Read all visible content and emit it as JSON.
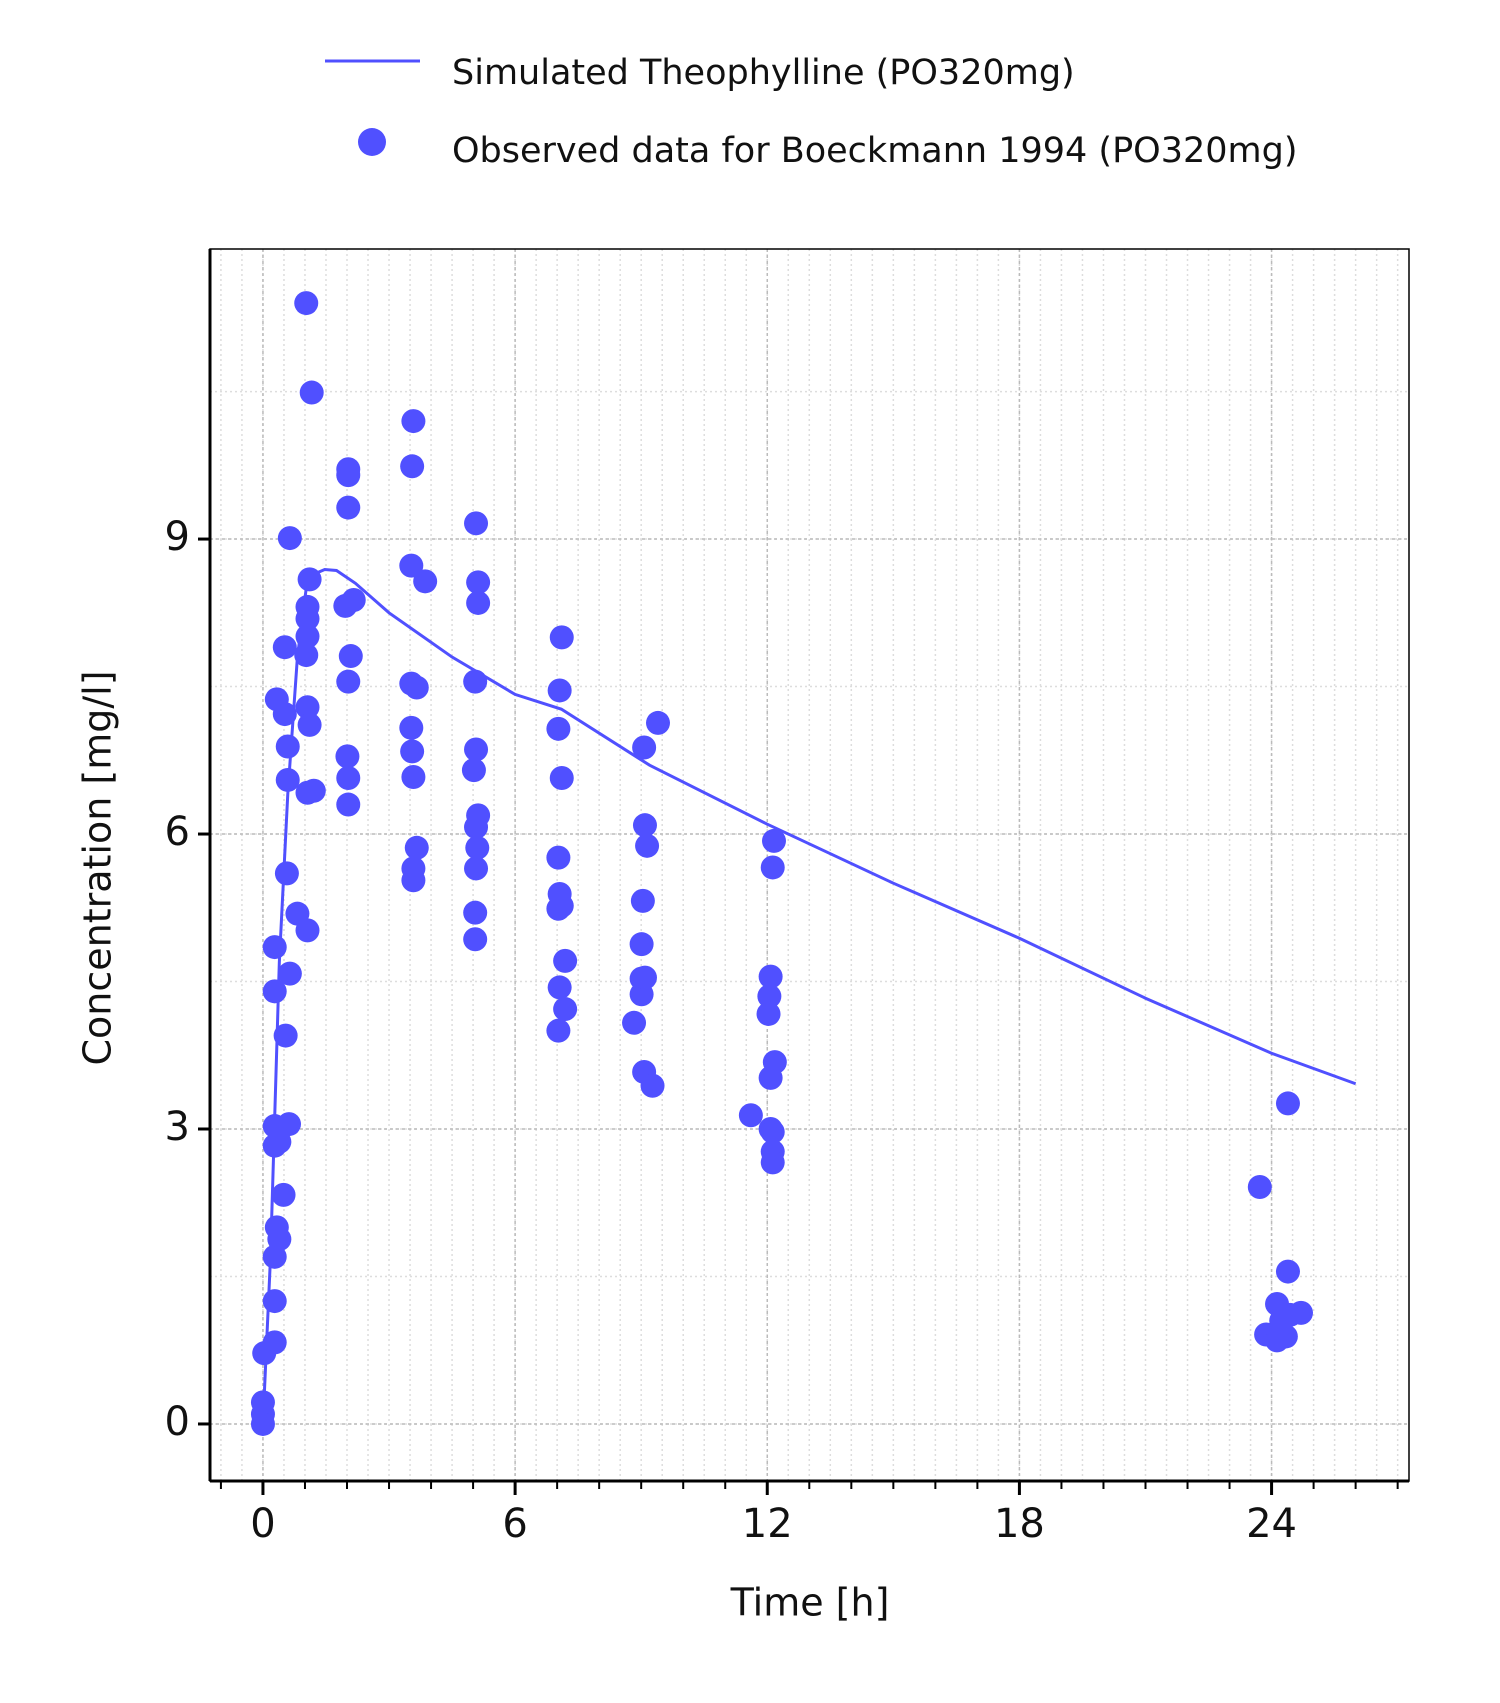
{
  "chart_data": {
    "type": "line",
    "xlabel": "Time [h]",
    "ylabel": "Concentration [mg/l]",
    "xlim": [
      -1.26,
      27.27
    ],
    "ylim": [
      -0.58,
      11.95
    ],
    "xticks": [
      0,
      6,
      12,
      18,
      24
    ],
    "yticks": [
      0,
      3,
      6,
      9
    ],
    "grid": true,
    "legend": "top",
    "series": [
      {
        "name": "Simulated Theophylline (PO320mg)",
        "type": "line",
        "color": "#5050ff",
        "x": [
          0,
          0.18,
          0.39,
          0.59,
          0.82,
          1.03,
          1.25,
          1.47,
          1.75,
          2.2,
          3,
          4.5,
          6,
          7.1,
          9.2,
          12,
          15,
          18,
          21,
          24,
          26
        ],
        "values": [
          0,
          1.7,
          4.7,
          6.4,
          7.8,
          8.5,
          8.65,
          8.69,
          8.68,
          8.55,
          8.25,
          7.8,
          7.42,
          7.27,
          6.7,
          6.1,
          5.5,
          4.94,
          4.33,
          3.77,
          3.46
        ]
      },
      {
        "name": "Observed data for Boeckmann 1994 (PO320mg)",
        "type": "scatter",
        "color": "#5050ff",
        "x": [
          0,
          0,
          0,
          0.03,
          0.28,
          0.28,
          0.28,
          0.33,
          0.39,
          0.28,
          0.28,
          0.39,
          0.28,
          0.28,
          0.33,
          0.49,
          0.54,
          0.64,
          0.62,
          0.57,
          0.52,
          0.59,
          0.59,
          0.52,
          0.64,
          0.82,
          1.06,
          1.06,
          1.21,
          1.06,
          1.11,
          1.03,
          1.06,
          1.06,
          1.06,
          1.11,
          1.16,
          1.03,
          2.03,
          2.03,
          2.01,
          2.03,
          2.09,
          1.96,
          2.16,
          2.03,
          2.03,
          2.03,
          3.58,
          3.58,
          3.66,
          3.58,
          3.55,
          3.53,
          3.66,
          3.53,
          3.53,
          3.86,
          3.55,
          3.58,
          5.05,
          5.05,
          5.07,
          5.1,
          5.07,
          5.12,
          5.02,
          5.07,
          5.05,
          5.12,
          5.12,
          5.07,
          7.03,
          7.19,
          7.06,
          7.19,
          7.03,
          7.11,
          7.06,
          7.03,
          7.11,
          7.03,
          7.06,
          7.11,
          8.83,
          9.07,
          9.27,
          9.01,
          9.01,
          9.09,
          9.01,
          9.04,
          9.14,
          9.09,
          9.07,
          9.4,
          11.61,
          12.08,
          12.13,
          12.13,
          12.13,
          12.08,
          12.18,
          12.03,
          12.05,
          12.08,
          12.13,
          12.16,
          23.72,
          24.39,
          24.39,
          24.13,
          24.23,
          23.87,
          24.13,
          24.34,
          24.7,
          24.44
        ],
        "values": [
          0,
          0.1,
          0.22,
          0.72,
          0.83,
          1.25,
          1.7,
          2.0,
          1.88,
          2.83,
          3.03,
          2.87,
          4.4,
          4.85,
          7.37,
          2.33,
          3.95,
          4.58,
          3.05,
          5.6,
          7.22,
          6.89,
          6.55,
          7.9,
          9.01,
          5.19,
          5.02,
          6.42,
          6.44,
          7.29,
          7.11,
          7.82,
          8.01,
          8.19,
          8.31,
          8.59,
          10.49,
          11.4,
          6.3,
          6.57,
          6.79,
          7.55,
          7.81,
          8.32,
          8.38,
          9.32,
          9.65,
          9.71,
          5.53,
          5.65,
          5.86,
          6.58,
          6.84,
          7.08,
          7.49,
          7.53,
          8.73,
          8.57,
          9.74,
          10.2,
          4.93,
          5.2,
          5.65,
          5.86,
          6.07,
          6.19,
          6.65,
          6.86,
          7.55,
          8.35,
          8.56,
          9.16,
          4.0,
          4.22,
          4.44,
          4.71,
          5.24,
          5.27,
          5.39,
          5.76,
          6.57,
          7.07,
          7.46,
          8.0,
          4.08,
          3.58,
          3.44,
          4.37,
          4.53,
          4.54,
          4.88,
          5.32,
          5.88,
          6.09,
          6.88,
          7.13,
          3.14,
          3.0,
          2.97,
          2.77,
          2.66,
          3.52,
          3.68,
          4.17,
          4.35,
          4.55,
          5.66,
          5.93,
          2.41,
          3.26,
          1.55,
          1.22,
          1.05,
          0.91,
          0.85,
          0.89,
          1.13,
          1.11
        ]
      }
    ]
  }
}
